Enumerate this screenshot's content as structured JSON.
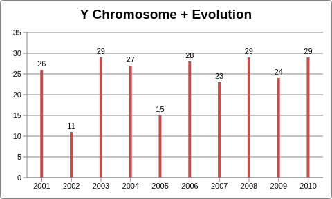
{
  "chart_data": {
    "type": "bar",
    "title": "Y Chromosome + Evolution",
    "categories": [
      "2001",
      "2002",
      "2003",
      "2004",
      "2005",
      "2006",
      "2007",
      "2008",
      "2009",
      "2010"
    ],
    "values": [
      26,
      11,
      29,
      27,
      15,
      28,
      23,
      29,
      24,
      29
    ],
    "color": "#c0504d",
    "ylim": [
      0,
      35
    ],
    "yticks": [
      0,
      5,
      10,
      15,
      20,
      25,
      30,
      35
    ],
    "grid": true,
    "data_labels": true
  }
}
